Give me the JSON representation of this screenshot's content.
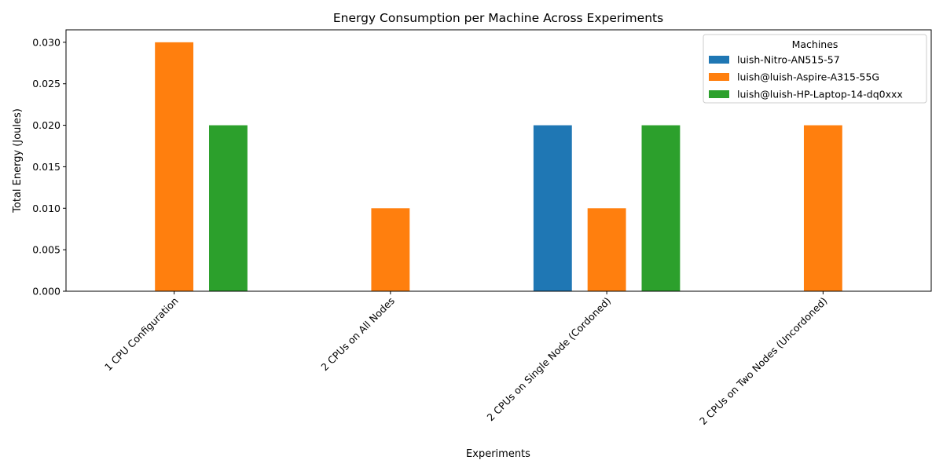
{
  "chart_data": {
    "type": "bar",
    "title": "Energy Consumption per Machine Across Experiments",
    "xlabel": "Experiments",
    "ylabel": "Total Energy (Joules)",
    "categories": [
      "1 CPU Configuration",
      "2 CPUs on All Nodes",
      "2 CPUs on Single Node (Cordoned)",
      "2 CPUs on Two Nodes (Uncordoned)"
    ],
    "series": [
      {
        "name": "luish-Nitro-AN515-57",
        "color": "#1f77b4",
        "values": [
          null,
          null,
          0.02,
          null
        ]
      },
      {
        "name": "luish@luish-Aspire-A315-55G",
        "color": "#ff7f0e",
        "values": [
          0.03,
          0.01,
          0.01,
          0.02
        ]
      },
      {
        "name": "luish@luish-HP-Laptop-14-dq0xxx",
        "color": "#2ca02c",
        "values": [
          0.02,
          null,
          0.02,
          null
        ]
      }
    ],
    "ylim": [
      0,
      0.0315
    ],
    "yticks": [
      "0.000",
      "0.005",
      "0.010",
      "0.015",
      "0.020",
      "0.025",
      "0.030"
    ],
    "grid": false,
    "legend": {
      "title": "Machines",
      "placement": "top-right"
    }
  }
}
